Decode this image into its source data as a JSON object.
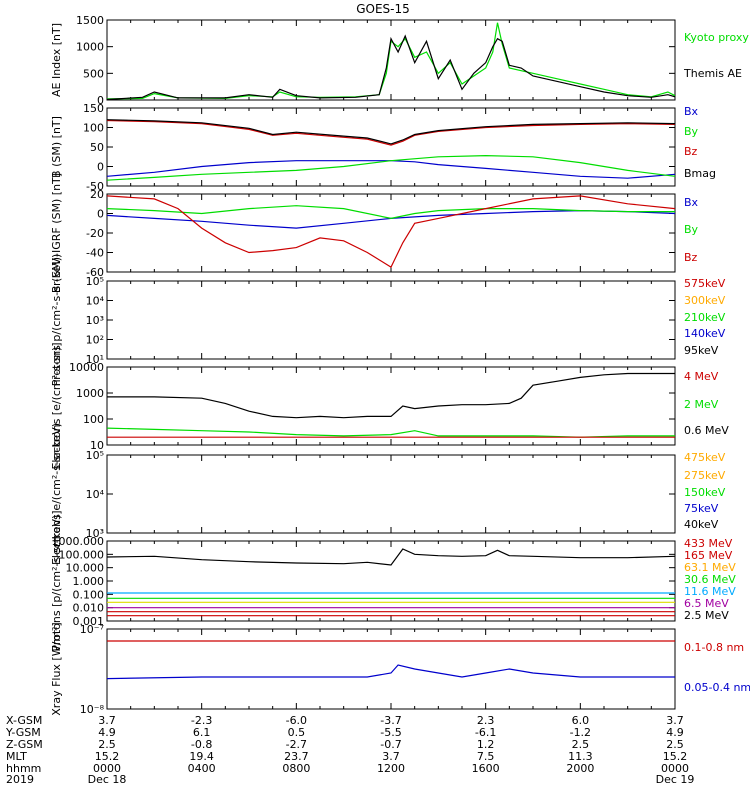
{
  "title": "GOES-15",
  "colors": {
    "black": "#000000",
    "red": "#cc0000",
    "green": "#00dd00",
    "blue": "#0000cc",
    "orange": "#ffaa00",
    "cyan": "#00aaff",
    "magenta": "#a000a0",
    "yellow": "#dddd00"
  },
  "chart_data": [
    {
      "type": "line",
      "id": "ae",
      "ylabel": "AE Index [nT]",
      "ylim": [
        0,
        1500
      ],
      "yscale": "linear",
      "ticks": [
        "0",
        "500",
        "1000",
        "1500"
      ],
      "series": [
        {
          "name": "Kyoto proxy AE",
          "color": "#00dd00",
          "x": [
            0,
            1.5,
            2,
            3,
            5,
            6,
            7,
            7.3,
            8,
            9,
            10.5,
            11.5,
            11.8,
            12,
            12.3,
            12.6,
            13,
            13.5,
            14,
            14.5,
            15,
            15.5,
            16,
            16.3,
            16.5,
            16.7,
            17,
            17.5,
            18,
            19,
            20,
            21,
            22,
            23,
            23.7,
            24
          ],
          "y": [
            20,
            30,
            120,
            40,
            30,
            80,
            60,
            150,
            60,
            50,
            60,
            100,
            500,
            1100,
            1000,
            1150,
            800,
            900,
            500,
            700,
            300,
            450,
            600,
            900,
            1450,
            1050,
            600,
            550,
            500,
            400,
            300,
            200,
            100,
            60,
            150,
            80
          ]
        },
        {
          "name": "Themis AE",
          "color": "#000000",
          "x": [
            0,
            1.5,
            2,
            3,
            5,
            6,
            7,
            7.3,
            8,
            9,
            10.5,
            11.5,
            11.8,
            12,
            12.3,
            12.6,
            13,
            13.5,
            14,
            14.5,
            15,
            15.5,
            16,
            16.3,
            16.5,
            16.7,
            17,
            17.5,
            18,
            19,
            20,
            21,
            22,
            23,
            23.7,
            24
          ],
          "y": [
            10,
            50,
            150,
            40,
            40,
            100,
            50,
            200,
            80,
            40,
            50,
            100,
            600,
            1150,
            900,
            1200,
            700,
            1100,
            400,
            750,
            200,
            500,
            700,
            1000,
            1150,
            1100,
            650,
            600,
            450,
            350,
            250,
            150,
            80,
            50,
            100,
            60
          ]
        }
      ],
      "legend": [
        "Kyoto proxy AE",
        "Themis AE"
      ]
    },
    {
      "type": "line",
      "id": "bsm",
      "ylabel": "B (SM) [nT]",
      "ylim": [
        -50,
        150
      ],
      "yscale": "linear",
      "ticks": [
        "-50",
        "0",
        "50",
        "100",
        "150"
      ],
      "series": [
        {
          "name": "Bx",
          "color": "#0000cc",
          "x": [
            0,
            2,
            4,
            6,
            8,
            10,
            12,
            13,
            14,
            16,
            18,
            20,
            22,
            24
          ],
          "y": [
            -25,
            -15,
            0,
            10,
            15,
            15,
            15,
            12,
            5,
            -5,
            -15,
            -25,
            -30,
            -20
          ]
        },
        {
          "name": "By",
          "color": "#00dd00",
          "x": [
            0,
            2,
            4,
            6,
            8,
            10,
            12,
            14,
            16,
            18,
            20,
            22,
            24
          ],
          "y": [
            -35,
            -28,
            -20,
            -15,
            -10,
            0,
            15,
            25,
            28,
            25,
            10,
            -10,
            -25
          ]
        },
        {
          "name": "Bz",
          "color": "#cc0000",
          "x": [
            0,
            2,
            4,
            6,
            7,
            8,
            10,
            11,
            12,
            12.5,
            13,
            14,
            16,
            18,
            20,
            22,
            24
          ],
          "y": [
            118,
            115,
            110,
            95,
            80,
            85,
            75,
            70,
            55,
            65,
            80,
            90,
            100,
            105,
            108,
            110,
            108
          ]
        },
        {
          "name": "Bmag",
          "color": "#000000",
          "x": [
            0,
            2,
            4,
            6,
            7,
            8,
            10,
            11,
            12,
            12.5,
            13,
            14,
            16,
            18,
            20,
            22,
            24
          ],
          "y": [
            120,
            117,
            112,
            98,
            82,
            88,
            78,
            73,
            58,
            68,
            82,
            92,
            102,
            108,
            110,
            112,
            110
          ]
        }
      ],
      "legend": [
        "Bx",
        "By",
        "Bz",
        "Bmag"
      ]
    },
    {
      "type": "line",
      "id": "bigrf",
      "ylabel": "B (SM)-IGRF (SM) [nT]",
      "ylim": [
        -60,
        20
      ],
      "yscale": "linear",
      "ticks": [
        "-60",
        "-40",
        "-20",
        "0",
        "20"
      ],
      "series": [
        {
          "name": "Bx",
          "color": "#0000cc",
          "x": [
            0,
            2,
            4,
            6,
            8,
            10,
            12,
            14,
            16,
            18,
            20,
            22,
            24
          ],
          "y": [
            -2,
            -5,
            -8,
            -12,
            -15,
            -10,
            -5,
            -2,
            0,
            2,
            3,
            2,
            0
          ]
        },
        {
          "name": "By",
          "color": "#00dd00",
          "x": [
            0,
            2,
            4,
            6,
            8,
            10,
            12,
            13,
            14,
            16,
            18,
            20,
            22,
            24
          ],
          "y": [
            5,
            3,
            0,
            5,
            8,
            5,
            -5,
            0,
            3,
            5,
            5,
            3,
            2,
            2
          ]
        },
        {
          "name": "Bz",
          "color": "#cc0000",
          "x": [
            0,
            2,
            3,
            4,
            5,
            6,
            7,
            8,
            9,
            10,
            11,
            12,
            12.5,
            13,
            14,
            16,
            18,
            20,
            22,
            24
          ],
          "y": [
            18,
            15,
            5,
            -15,
            -30,
            -40,
            -38,
            -35,
            -25,
            -28,
            -40,
            -55,
            -30,
            -10,
            -5,
            5,
            15,
            18,
            10,
            5
          ]
        }
      ],
      "legend": [
        "Bx",
        "By",
        "Bz"
      ]
    },
    {
      "type": "line",
      "id": "protons",
      "ylabel": "Protons p/(cm²-s-sr-keV)",
      "ylim": [
        1,
        5
      ],
      "yscale": "log",
      "ticks": [
        "10¹",
        "10²",
        "10³",
        "10⁴",
        "10⁵"
      ],
      "series": [],
      "legend": [
        "575keV",
        "300keV",
        "210keV",
        "140keV",
        "95keV"
      ],
      "legend_colors": [
        "#cc0000",
        "#ffaa00",
        "#00dd00",
        "#0000cc",
        "#000000"
      ]
    },
    {
      "type": "line",
      "id": "electrons1",
      "ylabel": "Electrons [e/(cm²-s-sr)]",
      "ylim": [
        1,
        4
      ],
      "yscale": "log",
      "ticks": [
        "10",
        "100",
        "1000",
        "10000"
      ],
      "series": [
        {
          "name": "0.6 MeV",
          "color": "#000000",
          "x": [
            0,
            2,
            4,
            5,
            6,
            7,
            8,
            9,
            10,
            11,
            12,
            12.5,
            13,
            14,
            15,
            16,
            17,
            17.5,
            18,
            19,
            20,
            21,
            22,
            23,
            24
          ],
          "y": [
            2.85,
            2.85,
            2.8,
            2.6,
            2.3,
            2.1,
            2.05,
            2.1,
            2.05,
            2.1,
            2.1,
            2.5,
            2.4,
            2.5,
            2.55,
            2.55,
            2.6,
            2.8,
            3.3,
            3.45,
            3.6,
            3.7,
            3.75,
            3.75,
            3.75
          ]
        },
        {
          "name": "2 MeV",
          "color": "#00dd00",
          "x": [
            0,
            2,
            4,
            6,
            8,
            10,
            12,
            13,
            14,
            16,
            18,
            20,
            22,
            24
          ],
          "y": [
            1.65,
            1.6,
            1.55,
            1.5,
            1.4,
            1.35,
            1.4,
            1.55,
            1.35,
            1.35,
            1.35,
            1.3,
            1.35,
            1.35
          ]
        },
        {
          "name": "4 MeV",
          "color": "#cc0000",
          "x": [
            0,
            24
          ],
          "y": [
            1.3,
            1.3
          ]
        }
      ],
      "legend": [
        "4 MeV",
        "2 MeV",
        "0.6 MeV"
      ]
    },
    {
      "type": "line",
      "id": "electrons2",
      "ylabel": "Electrons e/(cm²-s-sr-keV)",
      "ylim": [
        3,
        5
      ],
      "yscale": "log",
      "ticks": [
        "10³",
        "10⁴",
        "10⁵"
      ],
      "series": [],
      "legend": [
        "475keV",
        "275keV",
        "150keV",
        "75keV",
        "40keV"
      ],
      "legend_colors": [
        "#ffaa00",
        "#ffaa00",
        "#00dd00",
        "#0000cc",
        "#000000"
      ]
    },
    {
      "type": "line",
      "id": "protons2",
      "ylabel": "Protons [p/(cm²-s-sr-keV)]",
      "ylim": [
        -3,
        3
      ],
      "yscale": "log",
      "ticks": [
        "0.001",
        "0.010",
        "0.100",
        "1.000",
        "10.000",
        "100.000",
        "1000.000"
      ],
      "series": [
        {
          "name": "2.5 MeV",
          "color": "#000000",
          "x": [
            0,
            2,
            4,
            6,
            8,
            10,
            11,
            12,
            12.5,
            13,
            14,
            15,
            16,
            16.5,
            17,
            18,
            20,
            22,
            24
          ],
          "y": [
            1.8,
            1.85,
            1.6,
            1.45,
            1.35,
            1.3,
            1.4,
            1.2,
            2.4,
            2.0,
            1.9,
            1.85,
            1.9,
            2.3,
            1.9,
            1.85,
            1.75,
            1.75,
            1.85
          ]
        },
        {
          "name": "6.5 MeV",
          "color": "#a000a0",
          "x": [
            0,
            24
          ],
          "y": [
            -2.0,
            -2.0
          ]
        },
        {
          "name": "11.6 MeV",
          "color": "#00aaff",
          "x": [
            0,
            24
          ],
          "y": [
            -0.9,
            -0.9
          ]
        },
        {
          "name": "30.6 MeV",
          "color": "#00dd00",
          "x": [
            0,
            24
          ],
          "y": [
            -1.3,
            -1.3
          ]
        },
        {
          "name": "63.1 MeV",
          "color": "#dddd00",
          "x": [
            0,
            24
          ],
          "y": [
            -1.6,
            -1.6
          ]
        },
        {
          "name": "165 MeV",
          "color": "#cc0000",
          "x": [
            0,
            24
          ],
          "y": [
            -2.3,
            -2.3
          ]
        },
        {
          "name": "433 MeV",
          "color": "#cc0000",
          "x": [
            0,
            24
          ],
          "y": [
            -2.6,
            -2.6
          ]
        }
      ],
      "legend": [
        "433 MeV",
        "165 MeV",
        "63.1 MeV",
        "30.6 MeV",
        "11.6 MeV",
        "6.5 MeV",
        "2.5 MeV"
      ],
      "legend_colors": [
        "#cc0000",
        "#cc0000",
        "#ffaa00",
        "#00dd00",
        "#00aaff",
        "#a000a0",
        "#000000"
      ]
    },
    {
      "type": "line",
      "id": "xray",
      "ylabel": "Xray Flux [W/m²]",
      "ylim": [
        -8,
        -7
      ],
      "yscale": "log",
      "ticks": [
        "10⁻⁸",
        "10⁻⁷"
      ],
      "series": [
        {
          "name": "0.1-0.8 nm",
          "color": "#cc0000",
          "x": [
            0,
            24
          ],
          "y": [
            -7.15,
            -7.15
          ]
        },
        {
          "name": "0.05-0.4 nm",
          "color": "#0000cc",
          "x": [
            0,
            4,
            8,
            11,
            12,
            12.3,
            13,
            14,
            15,
            16,
            17,
            18,
            20,
            22,
            24
          ],
          "y": [
            -7.62,
            -7.6,
            -7.6,
            -7.6,
            -7.55,
            -7.45,
            -7.5,
            -7.55,
            -7.6,
            -7.55,
            -7.5,
            -7.55,
            -7.6,
            -7.6,
            -7.6
          ]
        }
      ],
      "legend": [
        "0.1-0.8 nm",
        "0.05-0.4 nm"
      ]
    }
  ],
  "time_axis": {
    "labels": [
      "X-GSM",
      "Y-GSM",
      "Z-GSM",
      "MLT",
      "hhmm",
      "2019"
    ],
    "columns": [
      {
        "x": 0,
        "values": [
          "3.7",
          "4.9",
          "2.5",
          "15.2",
          "0000",
          "Dec 18"
        ]
      },
      {
        "x": 4,
        "values": [
          "-2.3",
          "6.1",
          "-0.8",
          "19.4",
          "0400",
          ""
        ]
      },
      {
        "x": 8,
        "values": [
          "-6.0",
          "0.5",
          "-2.7",
          "23.7",
          "0800",
          ""
        ]
      },
      {
        "x": 12,
        "values": [
          "-3.7",
          "-5.5",
          "-0.7",
          "3.7",
          "1200",
          ""
        ]
      },
      {
        "x": 16,
        "values": [
          "2.3",
          "-6.1",
          "1.2",
          "7.5",
          "1600",
          ""
        ]
      },
      {
        "x": 20,
        "values": [
          "6.0",
          "-1.2",
          "2.5",
          "11.3",
          "2000",
          ""
        ]
      },
      {
        "x": 24,
        "values": [
          "3.7",
          "4.9",
          "2.5",
          "15.2",
          "0000",
          "Dec 19"
        ]
      }
    ]
  }
}
